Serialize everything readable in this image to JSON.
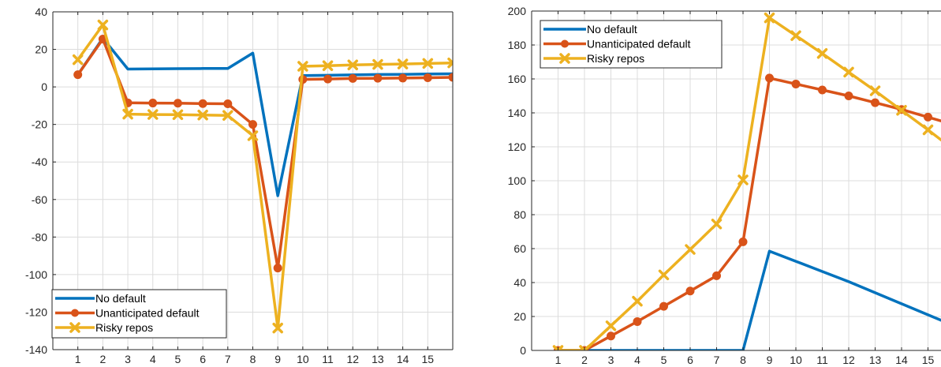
{
  "chart_data": [
    {
      "type": "line",
      "title": "",
      "xlabel": "",
      "ylabel": "",
      "x": [
        1,
        2,
        3,
        4,
        5,
        6,
        7,
        8,
        9,
        10,
        11,
        12,
        13,
        14,
        15,
        16
      ],
      "xticks": [
        1,
        2,
        3,
        4,
        5,
        6,
        7,
        8,
        9,
        10,
        11,
        12,
        13,
        14,
        15
      ],
      "xlim": [
        0,
        16
      ],
      "ylim": [
        -140,
        40
      ],
      "yticks": [
        -140,
        -120,
        -100,
        -80,
        -60,
        -40,
        -20,
        0,
        20,
        40
      ],
      "grid": true,
      "legend_position": "bottom-left",
      "series": [
        {
          "name": "No default",
          "color": "#0072BD",
          "marker": "none",
          "values": [
            6.5,
            26,
            9.5,
            9.6,
            9.7,
            9.8,
            9.8,
            18,
            -58,
            6,
            6.2,
            6.4,
            6.6,
            6.7,
            6.9,
            7
          ]
        },
        {
          "name": "Unanticipated default",
          "color": "#D95319",
          "marker": "circle",
          "values": [
            6.5,
            25.5,
            -8.5,
            -8.6,
            -8.7,
            -8.9,
            -9,
            -20,
            -96.5,
            4,
            4.2,
            4.5,
            4.6,
            4.7,
            4.9,
            5.1
          ]
        },
        {
          "name": "Risky repos",
          "color": "#EDB120",
          "marker": "x",
          "values": [
            14.5,
            33,
            -14.5,
            -14.7,
            -14.8,
            -15,
            -15.2,
            -26,
            -128.5,
            11,
            11.3,
            11.7,
            12,
            12.2,
            12.5,
            12.8
          ]
        }
      ]
    },
    {
      "type": "line",
      "title": "",
      "xlabel": "",
      "ylabel": "",
      "x": [
        1,
        2,
        3,
        4,
        5,
        6,
        7,
        8,
        9,
        10,
        11,
        12,
        13,
        14,
        15,
        16
      ],
      "xticks": [
        1,
        2,
        3,
        4,
        5,
        6,
        7,
        8,
        9,
        10,
        11,
        12,
        13,
        14,
        15
      ],
      "xlim": [
        0,
        16
      ],
      "ylim": [
        0,
        200
      ],
      "yticks": [
        0,
        20,
        40,
        60,
        80,
        100,
        120,
        140,
        160,
        180,
        200
      ],
      "grid": true,
      "legend_position": "top-left",
      "series": [
        {
          "name": "No default",
          "color": "#0072BD",
          "marker": "none",
          "values": [
            0,
            0,
            0,
            0,
            0,
            0,
            0,
            0,
            58.5,
            52.5,
            46.5,
            40.5,
            34,
            27.5,
            21,
            14.5
          ]
        },
        {
          "name": "Unanticipated default",
          "color": "#D95319",
          "marker": "circle",
          "values": [
            0,
            0,
            8.5,
            17,
            26,
            35,
            44,
            64,
            160.5,
            157,
            153.5,
            150,
            146,
            142,
            137.5,
            133
          ]
        },
        {
          "name": "Risky repos",
          "color": "#EDB120",
          "marker": "x",
          "values": [
            0,
            0,
            14.5,
            29,
            44.5,
            59.5,
            74.5,
            100.5,
            196,
            185.5,
            175,
            164,
            153,
            141.5,
            130,
            118
          ]
        }
      ]
    }
  ]
}
